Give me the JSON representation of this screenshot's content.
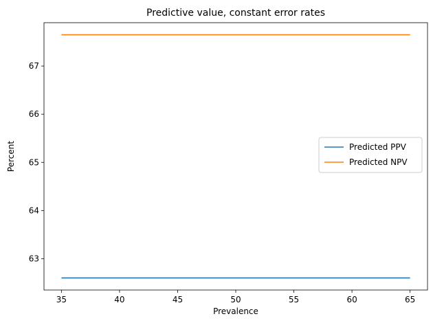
{
  "chart_data": {
    "type": "line",
    "title": "Predictive value, constant error rates",
    "xlabel": "Prevalence",
    "ylabel": "Percent",
    "xlim": [
      33.5,
      66.5
    ],
    "ylim": [
      62.35,
      67.9
    ],
    "xticks": [
      35,
      40,
      45,
      50,
      55,
      60,
      65
    ],
    "yticks": [
      63,
      64,
      65,
      66,
      67
    ],
    "grid": false,
    "legend": "center-right",
    "series": [
      {
        "name": "Predicted PPV",
        "color": "#1f77b4",
        "x": [
          35,
          65
        ],
        "y": [
          62.6,
          62.6
        ]
      },
      {
        "name": "Predicted NPV",
        "color": "#ff7f0e",
        "x": [
          35,
          65
        ],
        "y": [
          67.65,
          67.65
        ]
      }
    ]
  }
}
